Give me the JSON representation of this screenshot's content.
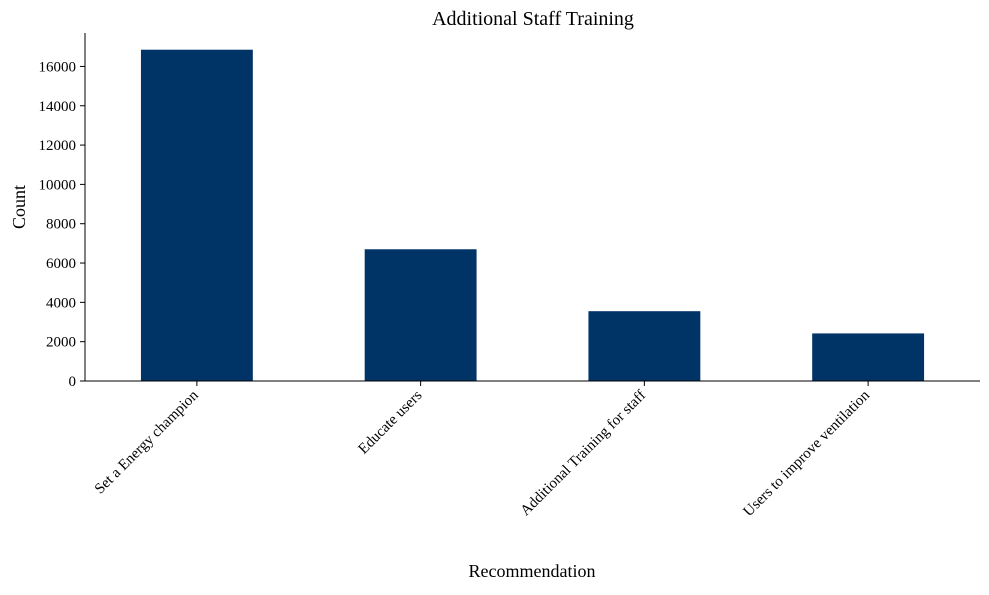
{
  "chart_data": {
    "type": "bar",
    "title": "Additional Staff Training",
    "xlabel": "Recommendation",
    "ylabel": "Count",
    "categories": [
      "Set a Energy champion",
      "Educate users",
      "Additional Training for staff",
      "Users to improve ventilation"
    ],
    "values": [
      16850,
      6700,
      3550,
      2420
    ],
    "ylim": [
      0,
      17700
    ],
    "yticks": [
      0,
      2000,
      4000,
      6000,
      8000,
      10000,
      12000,
      14000,
      16000
    ],
    "bar_color": "#003366",
    "grid": false,
    "legend": "none",
    "x_tick_rotation": "45 degrees"
  }
}
